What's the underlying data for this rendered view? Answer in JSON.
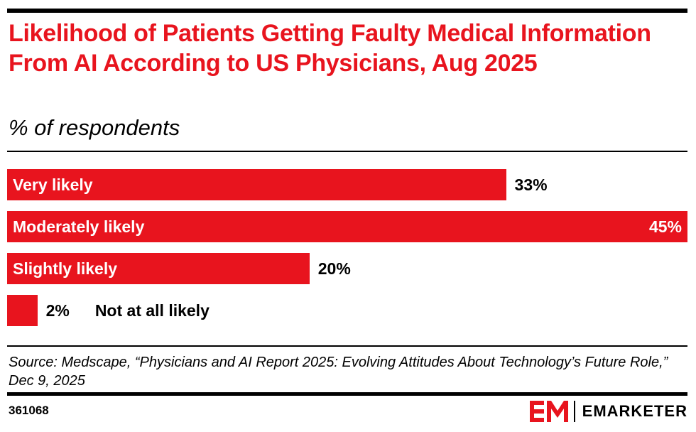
{
  "header": {
    "title": "Likelihood of Patients Getting Faulty Medical Information From AI According to US Physicians, Aug 2025",
    "subtitle": "% of respondents"
  },
  "chart_data": {
    "type": "bar",
    "orientation": "horizontal",
    "categories": [
      "Very likely",
      "Moderately likely",
      "Slightly likely",
      "Not at all likely"
    ],
    "values": [
      33,
      45,
      20,
      2
    ],
    "value_labels": [
      "33%",
      "45%",
      "20%",
      "2%"
    ],
    "title": "Likelihood of Patients Getting Faulty Medical Information From AI According to US Physicians, Aug 2025",
    "subtitle": "% of respondents",
    "xlim": [
      0,
      45
    ],
    "grid": false,
    "legend": "none",
    "bar_color": "#e8141e"
  },
  "footer": {
    "source": "Source: Medscape, “Physicians and AI Report 2025: Evolving Attitudes About Technology’s Future Role,” Dec 9, 2025",
    "chart_id": "361068",
    "brand": "EMARKETER",
    "brand_icon": "em-logo-icon"
  }
}
